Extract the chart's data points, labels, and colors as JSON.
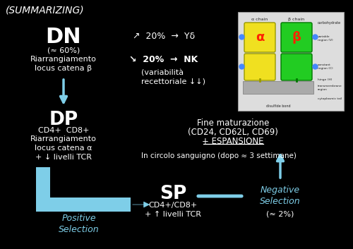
{
  "bg_color": "#000000",
  "text_color": "#ffffff",
  "arrow_color": "#7ecee8",
  "title": "(SUMMARIZING)",
  "dn_text": "DN",
  "dn_pct": "(≈ 60%)",
  "dn_sub": "Riarrangiamento\nlocus catena β",
  "dp_text": "DP",
  "dp_sub1": "CD4+  CD8+",
  "dp_sub2": "Riarrangiamento\nlocus catena α\n+ ↓ livelli TCR",
  "sp_text": "SP",
  "sp_sub": "CD4+/CD8+\n+ ↑ livelli TCR",
  "pos_sel": "Positive\nSelection",
  "neg_sel": "Negative\nSelection",
  "neg_pct": "(≈ 2%)",
  "branch1": "↗  20%  →  Yδ",
  "branch2": "↘  20%  →  NK",
  "branch2_sub": "(variabilità\nrecettoriale ↓↓)",
  "fine_line1": "Fine maturazione",
  "fine_line2": "(CD24, CD62L, CD69)",
  "fine_line3": "+ ESPANSIONE",
  "circolo": "In circolo sanguigno (dopo ≈ 3 settimane)"
}
